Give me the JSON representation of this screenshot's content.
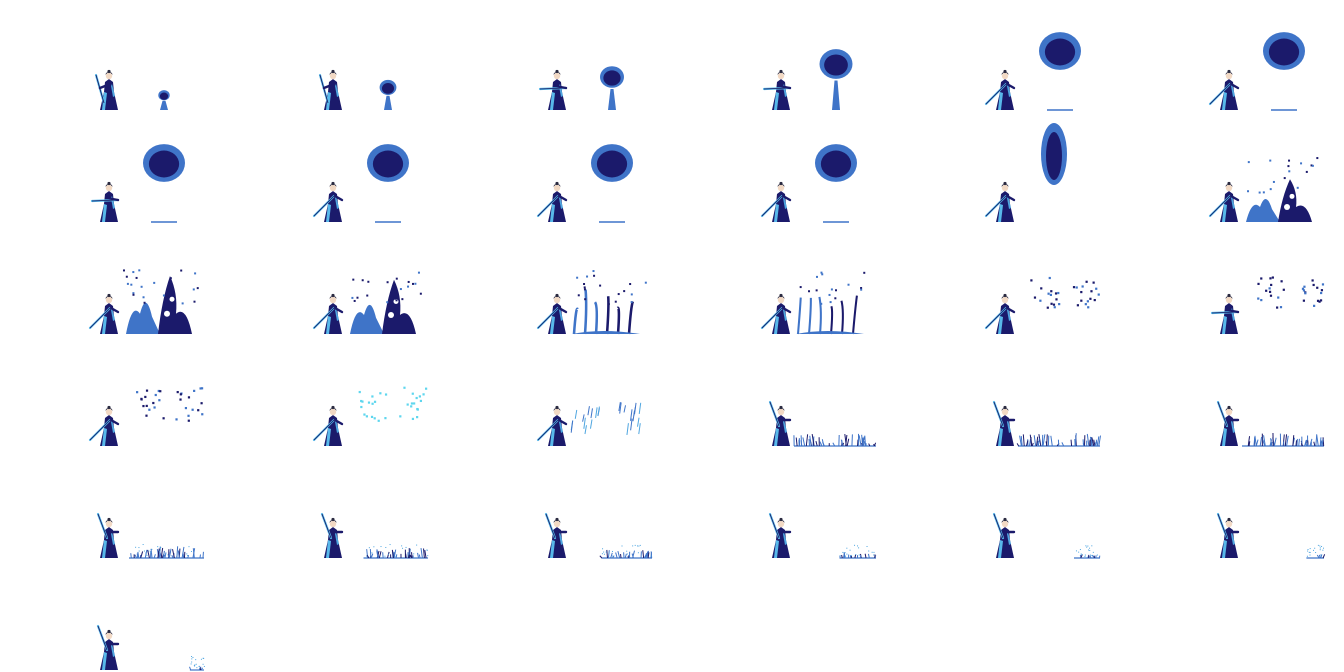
{
  "sprite_sheet": {
    "columns": 6,
    "frame_count": 31,
    "background": "#ffffff",
    "palette": {
      "robe": "#1b1a6b",
      "ink": "#14125a",
      "water_mid": "#3f74c8",
      "water_light": "#4fa6e0",
      "aqua": "#5ed6ee",
      "staff_glow": "#58b8ea",
      "hair": "#2a2a40"
    },
    "frames": [
      {
        "pose": "stand",
        "effect": "orb",
        "level": 0.15
      },
      {
        "pose": "stand",
        "effect": "orb",
        "level": 0.3
      },
      {
        "pose": "point",
        "effect": "orb",
        "level": 0.5
      },
      {
        "pose": "point",
        "effect": "orb",
        "level": 0.75
      },
      {
        "pose": "raise",
        "effect": "orb",
        "level": 1.0
      },
      {
        "pose": "raise",
        "effect": "orb",
        "level": 1.0
      },
      {
        "pose": "point",
        "effect": "orb",
        "level": 1.0
      },
      {
        "pose": "raise",
        "effect": "orb",
        "level": 1.0
      },
      {
        "pose": "raise",
        "effect": "orb",
        "level": 1.0
      },
      {
        "pose": "raise",
        "effect": "orb",
        "level": 1.0
      },
      {
        "pose": "raise",
        "effect": "orb_fall",
        "level": 1.0
      },
      {
        "pose": "raise",
        "effect": "splash",
        "level": 0.6
      },
      {
        "pose": "raise",
        "effect": "splash",
        "level": 1.0
      },
      {
        "pose": "raise",
        "effect": "splash",
        "level": 0.9
      },
      {
        "pose": "raise",
        "effect": "splash_thin",
        "level": 0.7
      },
      {
        "pose": "raise",
        "effect": "splash_thin",
        "level": 0.5
      },
      {
        "pose": "raise",
        "effect": "droplets",
        "level": 1.0
      },
      {
        "pose": "point",
        "effect": "droplets",
        "level": 1.0
      },
      {
        "pose": "raise",
        "effect": "droplets",
        "level": 0.8
      },
      {
        "pose": "raise",
        "effect": "droplets_aqua",
        "level": 0.8
      },
      {
        "pose": "raise",
        "effect": "streaks",
        "level": 1.0
      },
      {
        "pose": "staff_up",
        "effect": "grass",
        "level": 1.0
      },
      {
        "pose": "staff_up",
        "effect": "grass",
        "level": 1.0
      },
      {
        "pose": "staff_up",
        "effect": "grass",
        "level": 1.0
      },
      {
        "pose": "staff_up",
        "effect": "grass",
        "level": 0.9
      },
      {
        "pose": "staff_up",
        "effect": "grass",
        "level": 0.75
      },
      {
        "pose": "staff_up",
        "effect": "grass",
        "level": 0.55
      },
      {
        "pose": "staff_up",
        "effect": "grass",
        "level": 0.35
      },
      {
        "pose": "staff_up",
        "effect": "grass",
        "level": 0.2
      },
      {
        "pose": "staff_up",
        "effect": "grass",
        "level": 0.08
      },
      {
        "pose": "staff_up",
        "effect": "grass",
        "level": 0.03
      }
    ]
  }
}
